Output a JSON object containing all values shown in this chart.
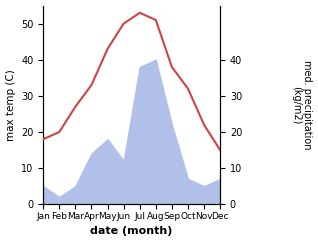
{
  "months": [
    "Jan",
    "Feb",
    "Mar",
    "Apr",
    "May",
    "Jun",
    "Jul",
    "Aug",
    "Sep",
    "Oct",
    "Nov",
    "Dec"
  ],
  "month_indices": [
    1,
    2,
    3,
    4,
    5,
    6,
    7,
    8,
    9,
    10,
    11,
    12
  ],
  "temperature": [
    18,
    20,
    27,
    33,
    43,
    50,
    53,
    51,
    38,
    32,
    22,
    15
  ],
  "precipitation": [
    5,
    2,
    5,
    14,
    18,
    12,
    38,
    40,
    22,
    7,
    5,
    7
  ],
  "temp_color": "#cc4444",
  "precip_color": "#b0c0e8",
  "temp_ylim": [
    0,
    55
  ],
  "precip_ylim": [
    0,
    55
  ],
  "temp_yticks": [
    0,
    10,
    20,
    30,
    40,
    50
  ],
  "precip_yticks": [
    0,
    10,
    20,
    30,
    40
  ],
  "xlabel": "date (month)",
  "ylabel_left": "max temp (C)",
  "ylabel_right": "med. precipitation\n(kg/m2)",
  "figsize": [
    3.18,
    2.42
  ],
  "dpi": 100
}
